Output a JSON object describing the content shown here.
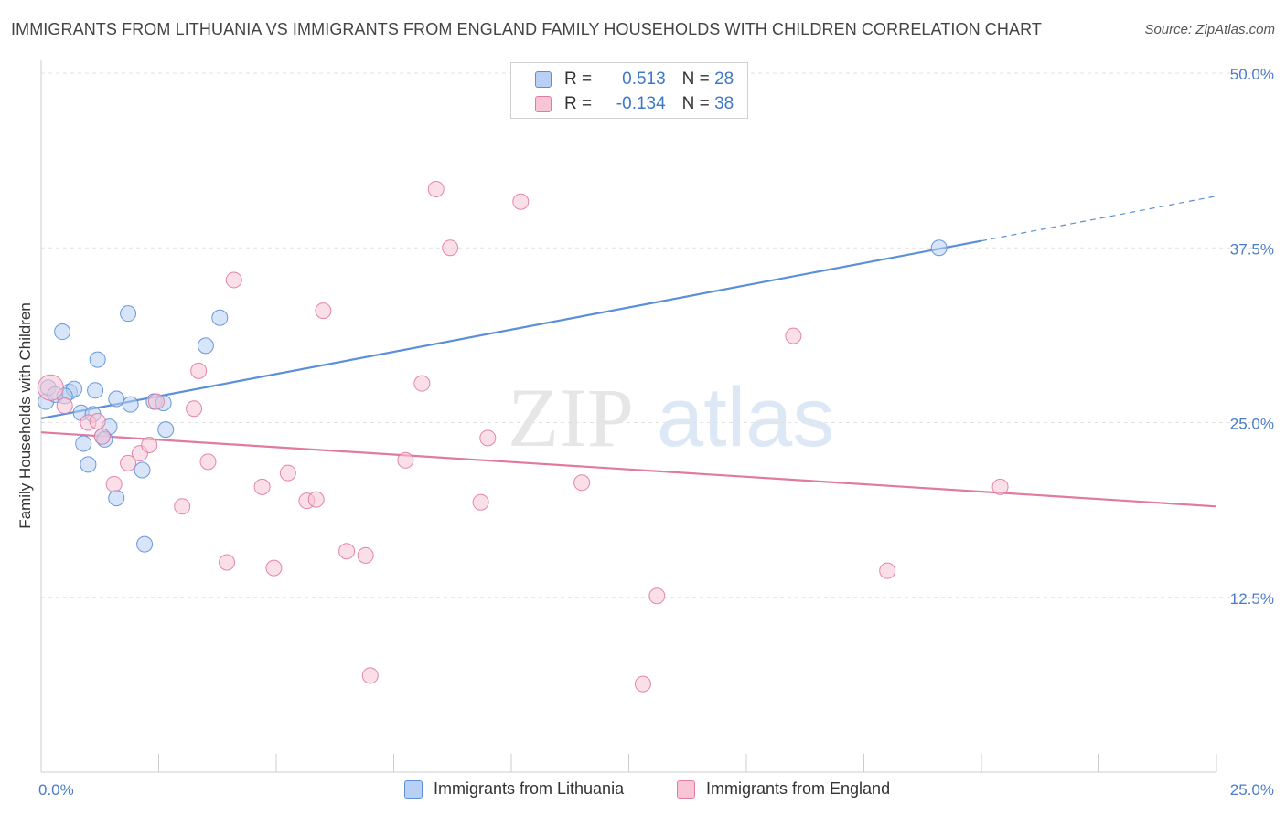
{
  "chart_data": {
    "type": "scatter",
    "title": "IMMIGRANTS FROM LITHUANIA VS IMMIGRANTS FROM ENGLAND FAMILY HOUSEHOLDS WITH CHILDREN CORRELATION CHART",
    "source": "Source: ZipAtlas.com",
    "ylabel": "Family Households with Children",
    "xlim": [
      0,
      25
    ],
    "ylim": [
      0,
      50
    ],
    "y_ticks": [
      {
        "value": 12.5,
        "label": "12.5%"
      },
      {
        "value": 25,
        "label": "25.0%"
      },
      {
        "value": 37.5,
        "label": "37.5%"
      },
      {
        "value": 50,
        "label": "50.0%"
      }
    ],
    "x_end_labels": {
      "min": "0.0%",
      "max": "25.0%"
    },
    "watermark": {
      "zip": "ZIP",
      "atlas": "atlas"
    },
    "legend": {
      "r_label": "R =",
      "n_label": "N =",
      "entries": [
        {
          "r": "0.513",
          "n": "28"
        },
        {
          "r": "-0.134",
          "n": "38"
        }
      ]
    },
    "series": [
      {
        "name": "Immigrants from Lithuania",
        "color": "#5b8fd8",
        "fill": "#b8d0f3",
        "trend": {
          "x0": 0,
          "y0": 25.3,
          "x1": 20,
          "y1": 38.0,
          "dash_to_x": 25,
          "dash_to_y": 41.2
        },
        "points": [
          [
            0.1,
            26.5
          ],
          [
            0.15,
            27.5
          ],
          [
            0.3,
            27.0
          ],
          [
            0.45,
            31.5
          ],
          [
            0.6,
            27.2
          ],
          [
            0.7,
            27.4
          ],
          [
            0.85,
            25.7
          ],
          [
            0.9,
            23.5
          ],
          [
            1.0,
            22.0
          ],
          [
            1.1,
            25.6
          ],
          [
            1.15,
            27.3
          ],
          [
            1.2,
            29.5
          ],
          [
            1.3,
            24.0
          ],
          [
            1.45,
            24.7
          ],
          [
            1.6,
            26.7
          ],
          [
            1.85,
            32.8
          ],
          [
            1.9,
            26.3
          ],
          [
            2.15,
            21.6
          ],
          [
            2.2,
            16.3
          ],
          [
            1.6,
            19.6
          ],
          [
            2.4,
            26.5
          ],
          [
            2.65,
            24.5
          ],
          [
            3.5,
            30.5
          ],
          [
            3.8,
            32.5
          ],
          [
            19.1,
            37.5
          ],
          [
            0.5,
            26.9
          ],
          [
            1.35,
            23.8
          ],
          [
            2.6,
            26.4
          ]
        ]
      },
      {
        "name": "Immigrants from England",
        "color": "#e07aa0",
        "fill": "#f7c5d6",
        "trend": {
          "x0": 0,
          "y0": 24.3,
          "x1": 25,
          "y1": 19.0
        },
        "points": [
          [
            0.2,
            27.5
          ],
          [
            0.5,
            26.2
          ],
          [
            1.0,
            25.0
          ],
          [
            1.2,
            25.1
          ],
          [
            1.3,
            24.0
          ],
          [
            1.55,
            20.6
          ],
          [
            1.85,
            22.1
          ],
          [
            2.1,
            22.8
          ],
          [
            2.3,
            23.4
          ],
          [
            2.45,
            26.5
          ],
          [
            3.0,
            19.0
          ],
          [
            3.25,
            26.0
          ],
          [
            3.35,
            28.7
          ],
          [
            3.55,
            22.2
          ],
          [
            3.95,
            15.0
          ],
          [
            4.1,
            35.2
          ],
          [
            4.7,
            20.4
          ],
          [
            4.95,
            14.6
          ],
          [
            5.25,
            21.4
          ],
          [
            5.65,
            19.4
          ],
          [
            5.85,
            19.5
          ],
          [
            6.0,
            33.0
          ],
          [
            6.5,
            15.8
          ],
          [
            6.9,
            15.5
          ],
          [
            7.0,
            6.9
          ],
          [
            7.75,
            22.3
          ],
          [
            8.1,
            27.8
          ],
          [
            8.4,
            41.7
          ],
          [
            8.7,
            37.5
          ],
          [
            9.35,
            19.3
          ],
          [
            9.5,
            23.9
          ],
          [
            10.2,
            40.8
          ],
          [
            11.5,
            20.7
          ],
          [
            12.8,
            6.3
          ],
          [
            13.1,
            12.6
          ],
          [
            16.0,
            31.2
          ],
          [
            18.0,
            14.4
          ],
          [
            20.4,
            20.4
          ]
        ]
      }
    ]
  }
}
